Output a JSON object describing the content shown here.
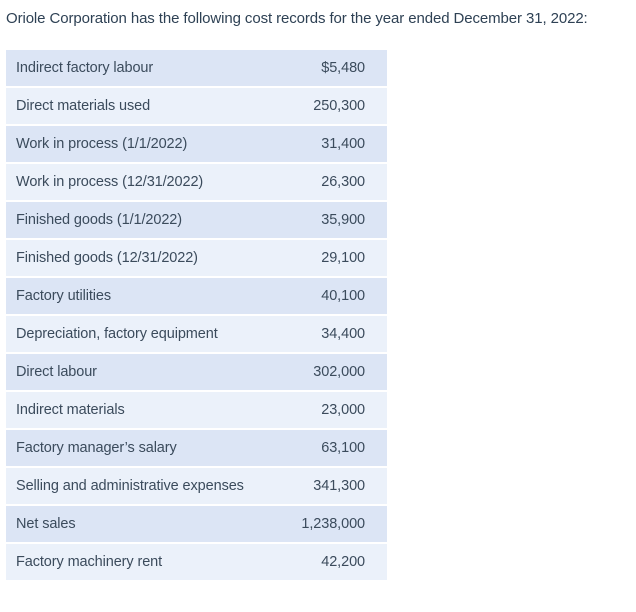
{
  "title": "Oriole Corporation has the following cost records for the year ended December 31, 2022:",
  "table": {
    "colors": {
      "row_odd": "#dce5f5",
      "row_even": "#ebf1fa",
      "text": "#3b4b5c",
      "title": "#2e4154"
    },
    "rows": [
      {
        "label": "Indirect factory labour",
        "value": "$5,480"
      },
      {
        "label": "Direct materials used",
        "value": "250,300"
      },
      {
        "label": "Work in process (1/1/2022)",
        "value": "31,400"
      },
      {
        "label": "Work in process (12/31/2022)",
        "value": "26,300"
      },
      {
        "label": "Finished goods (1/1/2022)",
        "value": "35,900"
      },
      {
        "label": "Finished goods (12/31/2022)",
        "value": "29,100"
      },
      {
        "label": "Factory utilities",
        "value": "40,100"
      },
      {
        "label": "Depreciation, factory equipment",
        "value": "34,400"
      },
      {
        "label": "Direct labour",
        "value": "302,000"
      },
      {
        "label": "Indirect materials",
        "value": "23,000"
      },
      {
        "label": "Factory manager’s salary",
        "value": "63,100"
      },
      {
        "label": "Selling and administrative expenses",
        "value": "341,300"
      },
      {
        "label": "Net sales",
        "value": "1,238,000"
      },
      {
        "label": "Factory machinery rent",
        "value": "42,200"
      }
    ]
  }
}
